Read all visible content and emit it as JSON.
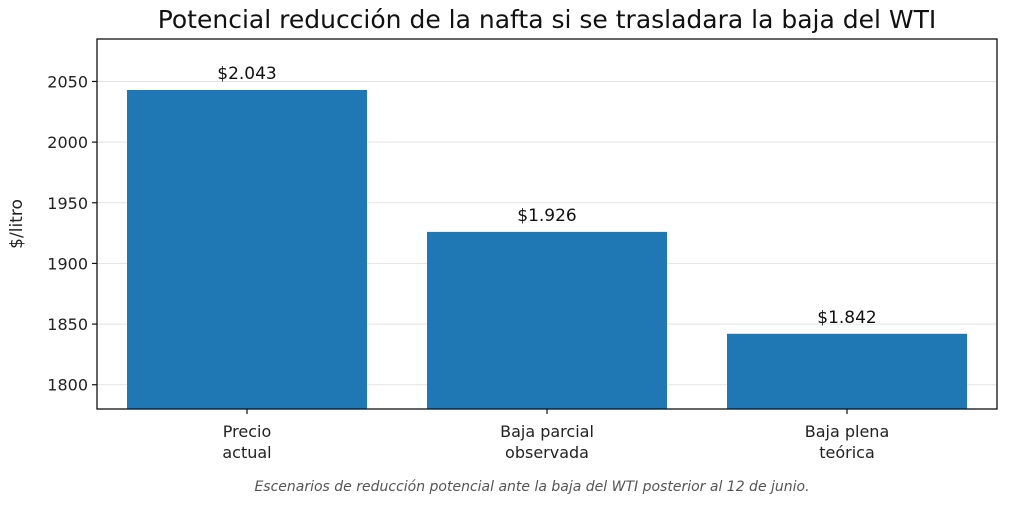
{
  "chart_data": {
    "type": "bar",
    "title": "Potencial reducción de la nafta si se trasladara la baja del WTI",
    "xlabel": "",
    "ylabel": "$/litro",
    "categories": [
      [
        "Precio",
        "actual"
      ],
      [
        "Baja parcial",
        "observada"
      ],
      [
        "Baja plena",
        "teórica"
      ]
    ],
    "values": [
      2043,
      1926,
      1842
    ],
    "data_labels": [
      "$2.043",
      "$1.926",
      "$1.842"
    ],
    "ylim": [
      1780,
      2085
    ],
    "yticks": [
      1800,
      1850,
      1900,
      1950,
      2000,
      2050
    ],
    "grid": true,
    "bar_color": "#1f77b4"
  },
  "caption": "Escenarios de reducción potencial ante la baja del WTI posterior al 12 de junio."
}
